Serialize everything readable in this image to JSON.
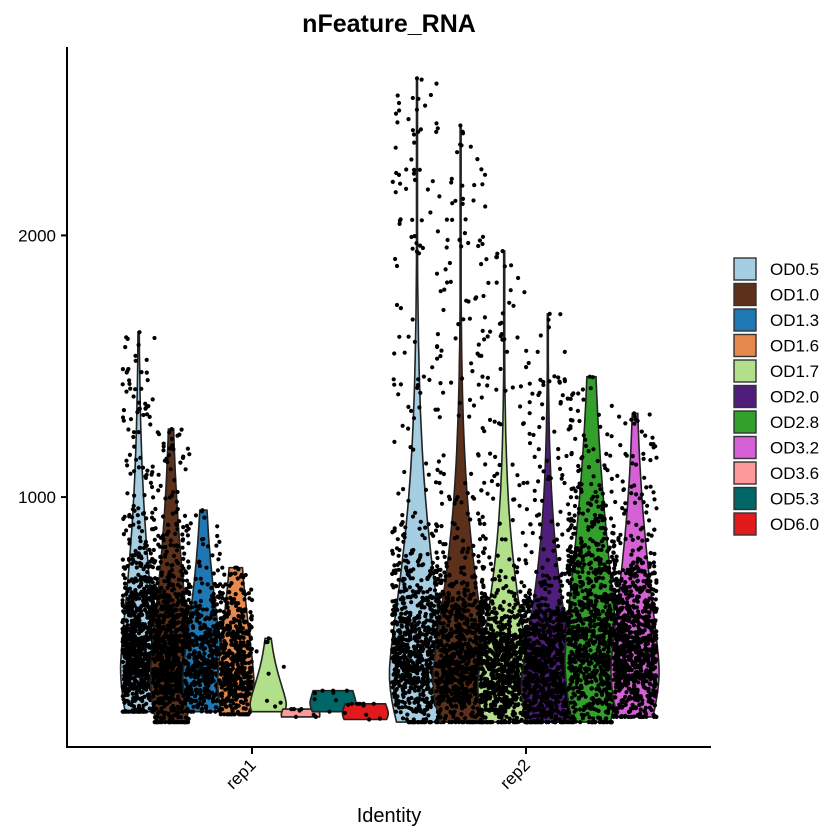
{
  "chart_data": {
    "type": "violin",
    "title": "nFeature_RNA",
    "xlabel": "Identity",
    "ylabel": "",
    "categories": [
      "rep1",
      "rep2"
    ],
    "y_ticks": [
      1000,
      2000
    ],
    "ylim": [
      45,
      2720
    ],
    "grid": false,
    "legend_position": "right",
    "series": [
      {
        "name": "OD0.5",
        "color": "#A6CEE3"
      },
      {
        "name": "OD1.0",
        "color": "#5C301A"
      },
      {
        "name": "OD1.3",
        "color": "#1F78B4"
      },
      {
        "name": "OD1.6",
        "color": "#E6894F"
      },
      {
        "name": "OD1.7",
        "color": "#B2DF8A"
      },
      {
        "name": "OD2.0",
        "color": "#4F1D7A"
      },
      {
        "name": "OD2.8",
        "color": "#33A02C"
      },
      {
        "name": "OD3.2",
        "color": "#D660D6"
      },
      {
        "name": "OD3.6",
        "color": "#FB9A99"
      },
      {
        "name": "OD5.3",
        "color": "#006666"
      },
      {
        "name": "OD6.0",
        "color": "#E31A1C"
      }
    ],
    "groups": [
      {
        "identity": "rep1",
        "series": "OD0.5",
        "min": 180,
        "max": 1630,
        "peak": 350,
        "width": 0.3,
        "n": 900
      },
      {
        "identity": "rep1",
        "series": "OD1.0",
        "min": 140,
        "max": 1260,
        "peak": 320,
        "width": 0.34,
        "n": 1500
      },
      {
        "identity": "rep1",
        "series": "OD1.3",
        "min": 180,
        "max": 950,
        "peak": 310,
        "width": 0.34,
        "n": 500
      },
      {
        "identity": "rep1",
        "series": "OD1.6",
        "min": 170,
        "max": 730,
        "peak": 300,
        "width": 0.3,
        "n": 480
      },
      {
        "identity": "rep1",
        "series": "OD1.7",
        "min": 180,
        "max": 460,
        "peak": 210,
        "width": 0.3,
        "n": 7
      },
      {
        "identity": "rep1",
        "series": "OD3.6",
        "min": 160,
        "max": 190,
        "peak": 170,
        "width": 0.32,
        "n": 5
      },
      {
        "identity": "rep1",
        "series": "OD5.3",
        "min": 180,
        "max": 260,
        "peak": 215,
        "width": 0.38,
        "n": 7
      },
      {
        "identity": "rep1",
        "series": "OD6.0",
        "min": 150,
        "max": 210,
        "peak": 175,
        "width": 0.38,
        "n": 10
      },
      {
        "identity": "rep2",
        "series": "OD0.5",
        "min": 140,
        "max": 2600,
        "peak": 330,
        "width": 0.46,
        "n": 3000
      },
      {
        "identity": "rep2",
        "series": "OD1.0",
        "min": 140,
        "max": 2420,
        "peak": 310,
        "width": 0.46,
        "n": 3000
      },
      {
        "identity": "rep2",
        "series": "OD1.7",
        "min": 140,
        "max": 1940,
        "peak": 280,
        "width": 0.44,
        "n": 2000
      },
      {
        "identity": "rep2",
        "series": "OD2.0",
        "min": 140,
        "max": 1700,
        "peak": 280,
        "width": 0.44,
        "n": 2000
      },
      {
        "identity": "rep2",
        "series": "OD2.8",
        "min": 140,
        "max": 1460,
        "peak": 380,
        "width": 0.44,
        "n": 2500
      },
      {
        "identity": "rep2",
        "series": "OD3.2",
        "min": 160,
        "max": 1320,
        "peak": 340,
        "width": 0.4,
        "n": 1500
      }
    ]
  }
}
